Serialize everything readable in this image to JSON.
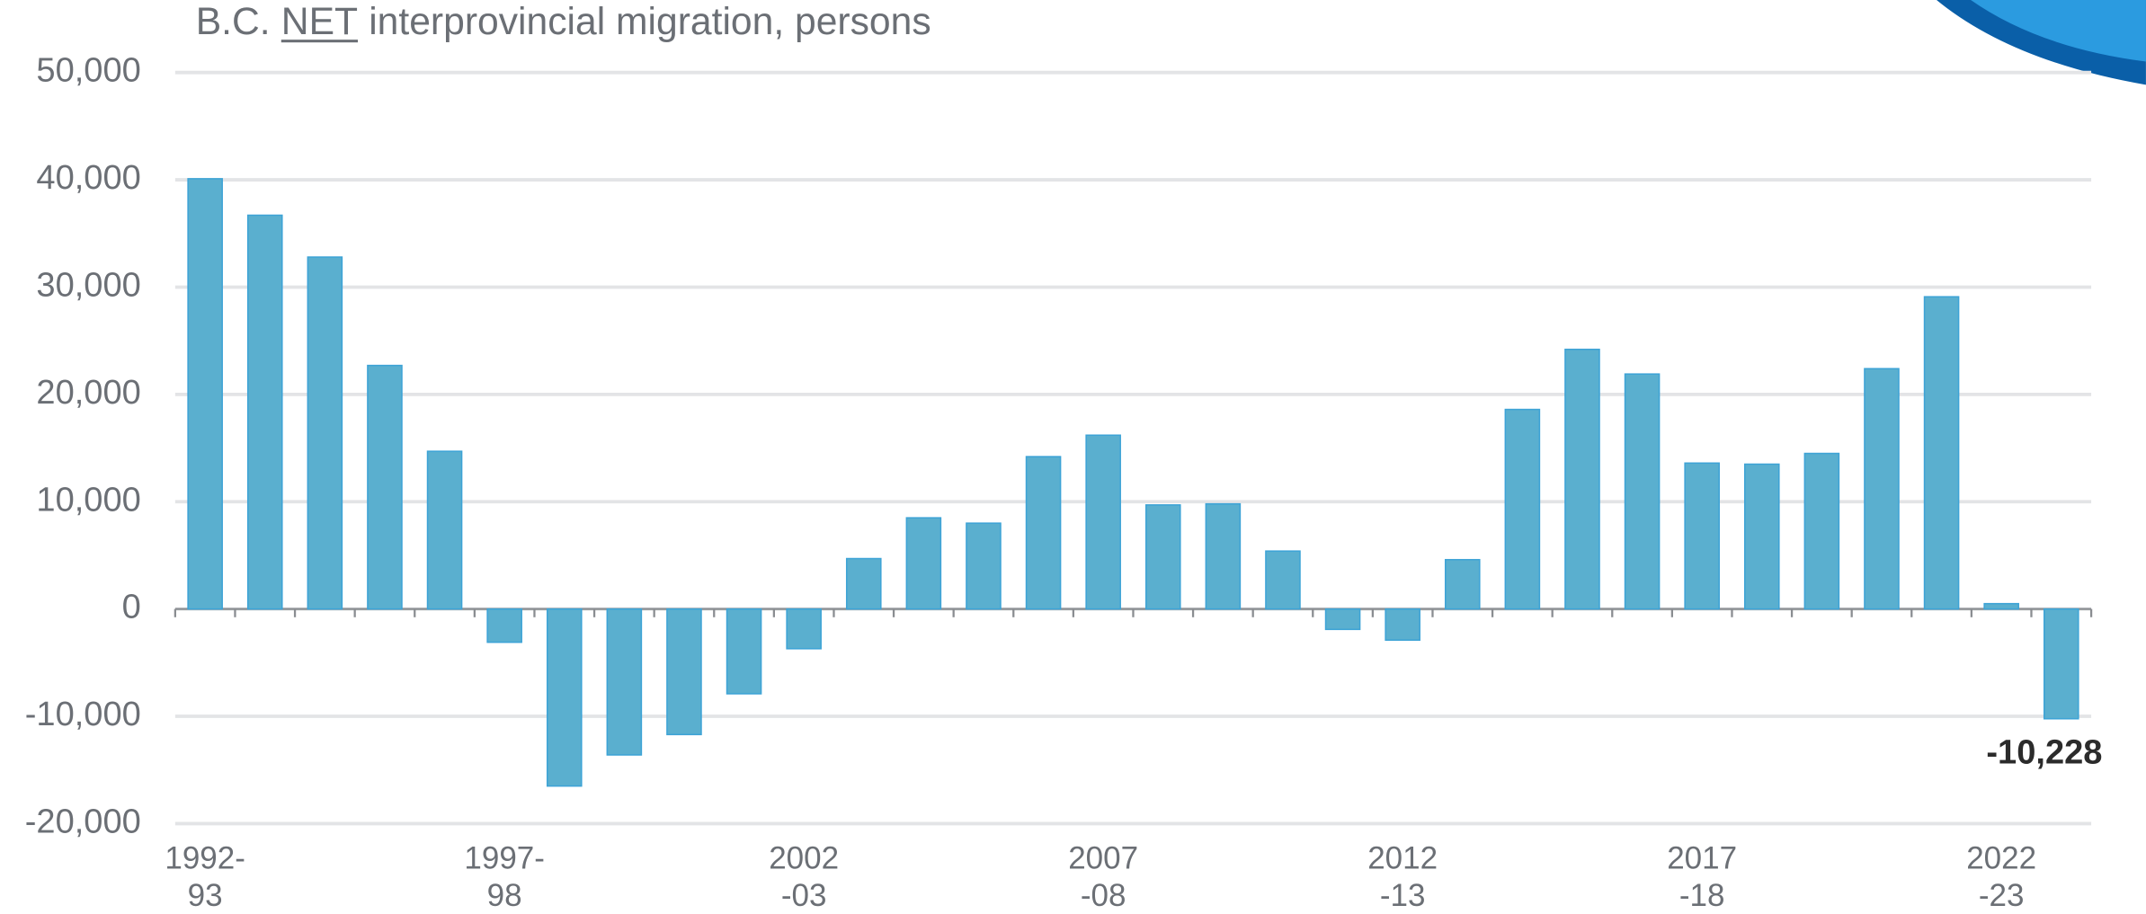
{
  "chart_data": {
    "type": "bar",
    "title": [
      "B.C.",
      "NET",
      "interprovincial migration, persons"
    ],
    "categories": [
      "1992-\n93",
      null,
      null,
      null,
      null,
      "1997-\n98",
      null,
      null,
      null,
      null,
      "2002\n-03",
      null,
      null,
      null,
      null,
      "2007\n-08",
      null,
      null,
      null,
      null,
      "2012\n-13",
      null,
      null,
      null,
      null,
      "2017\n-18",
      null,
      null,
      null,
      null,
      "2022\n-23",
      null
    ],
    "values": [
      40100,
      36700,
      32800,
      22700,
      14700,
      -3100,
      -16500,
      -13600,
      -11700,
      -7900,
      -3700,
      4700,
      8500,
      8000,
      14200,
      16200,
      9700,
      9800,
      5400,
      -1900,
      -2900,
      4600,
      18600,
      24200,
      21900,
      13600,
      13500,
      14500,
      22400,
      29100,
      500,
      -10228
    ],
    "value_labels": [
      null,
      null,
      null,
      null,
      null,
      null,
      null,
      null,
      null,
      null,
      null,
      null,
      null,
      null,
      null,
      null,
      null,
      null,
      null,
      null,
      null,
      null,
      null,
      null,
      null,
      null,
      null,
      null,
      null,
      null,
      null,
      "-10,228"
    ],
    "color": "#5aafcf",
    "ylim": [
      -20000,
      50000
    ],
    "yticks": [
      {
        "value": -20000,
        "label": "-20,000"
      },
      {
        "value": -10000,
        "label": "-10,000"
      },
      0,
      {
        "value": 10000,
        "label": "10,000"
      },
      {
        "value": 20000,
        "label": "20,000"
      },
      {
        "value": 30000,
        "label": "30,000"
      },
      {
        "value": 40000,
        "label": "40,000"
      },
      {
        "value": 50000,
        "label": "50,000"
      }
    ],
    "grid": true
  }
}
